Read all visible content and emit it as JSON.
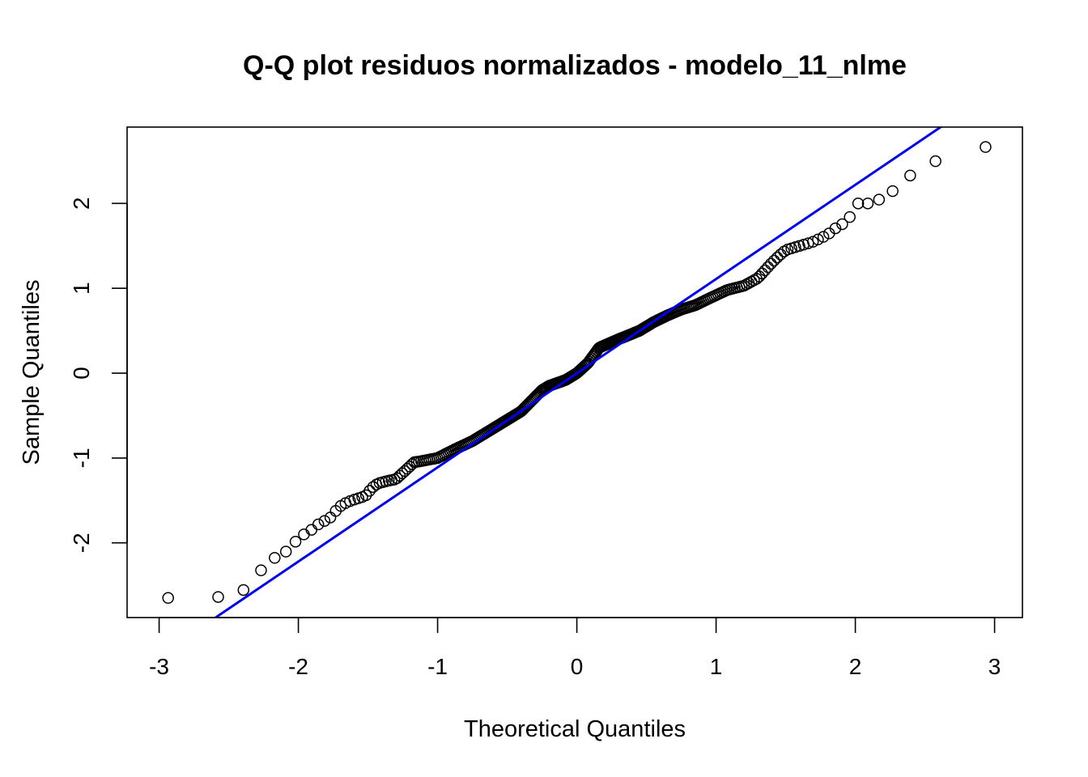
{
  "chart_data": {
    "type": "scatter",
    "title": "Q-Q plot residuos normalizados - modelo_11_nlme",
    "xlabel": "Theoretical Quantiles",
    "ylabel": "Sample Quantiles",
    "xlim": [
      -3.23,
      3.2
    ],
    "ylim": [
      -2.88,
      2.9
    ],
    "x_ticks": [
      -3,
      -2,
      -1,
      0,
      1,
      2,
      3
    ],
    "x_tick_labels": [
      "-3",
      "-2",
      "-1",
      "0",
      "1",
      "2",
      "3"
    ],
    "y_ticks": [
      -2,
      -1,
      0,
      1,
      2
    ],
    "y_tick_labels": [
      "-2",
      "-1",
      "0",
      "1",
      "2"
    ],
    "grid": false,
    "reference_line": {
      "color": "#0000ee",
      "intercept": 0.0,
      "slope": 1.11
    },
    "point_color": "#000000",
    "quantile_knots": {
      "x": [
        -2.97,
        -2.62,
        -2.44,
        -2.31,
        -2.21,
        -2.12,
        -2.05,
        -1.97,
        -1.9,
        -1.84,
        -1.78,
        -1.71,
        -1.65,
        -1.58,
        -1.52,
        -1.47,
        -1.43,
        -1.36,
        -1.3,
        -1.2,
        -1.17,
        -1.13,
        -1.0,
        -0.88,
        -0.75,
        -0.55,
        -0.4,
        -0.25,
        -0.2,
        -0.08,
        0.0,
        0.08,
        0.16,
        0.3,
        0.45,
        0.55,
        0.65,
        0.75,
        0.85,
        0.95,
        1.08,
        1.2,
        1.3,
        1.4,
        1.45,
        1.5,
        1.6,
        1.7,
        1.8,
        1.85,
        1.9,
        1.95,
        2.0,
        2.05,
        2.1,
        2.21,
        2.31,
        2.44,
        2.62,
        2.97
      ],
      "y": [
        -2.65,
        -2.64,
        -2.63,
        -2.42,
        -2.19,
        -2.16,
        -2.03,
        -1.91,
        -1.84,
        -1.76,
        -1.72,
        -1.58,
        -1.52,
        -1.48,
        -1.45,
        -1.35,
        -1.3,
        -1.27,
        -1.25,
        -1.1,
        -1.05,
        -1.04,
        -1.0,
        -0.9,
        -0.8,
        -0.6,
        -0.45,
        -0.2,
        -0.15,
        -0.08,
        0.0,
        0.12,
        0.3,
        0.4,
        0.5,
        0.6,
        0.68,
        0.75,
        0.8,
        0.88,
        0.98,
        1.03,
        1.12,
        1.3,
        1.38,
        1.45,
        1.5,
        1.55,
        1.63,
        1.7,
        1.75,
        1.8,
        2.0,
        2.0,
        2.0,
        2.07,
        2.2,
        2.4,
        2.53,
        2.68
      ]
    },
    "n_points": 300
  }
}
